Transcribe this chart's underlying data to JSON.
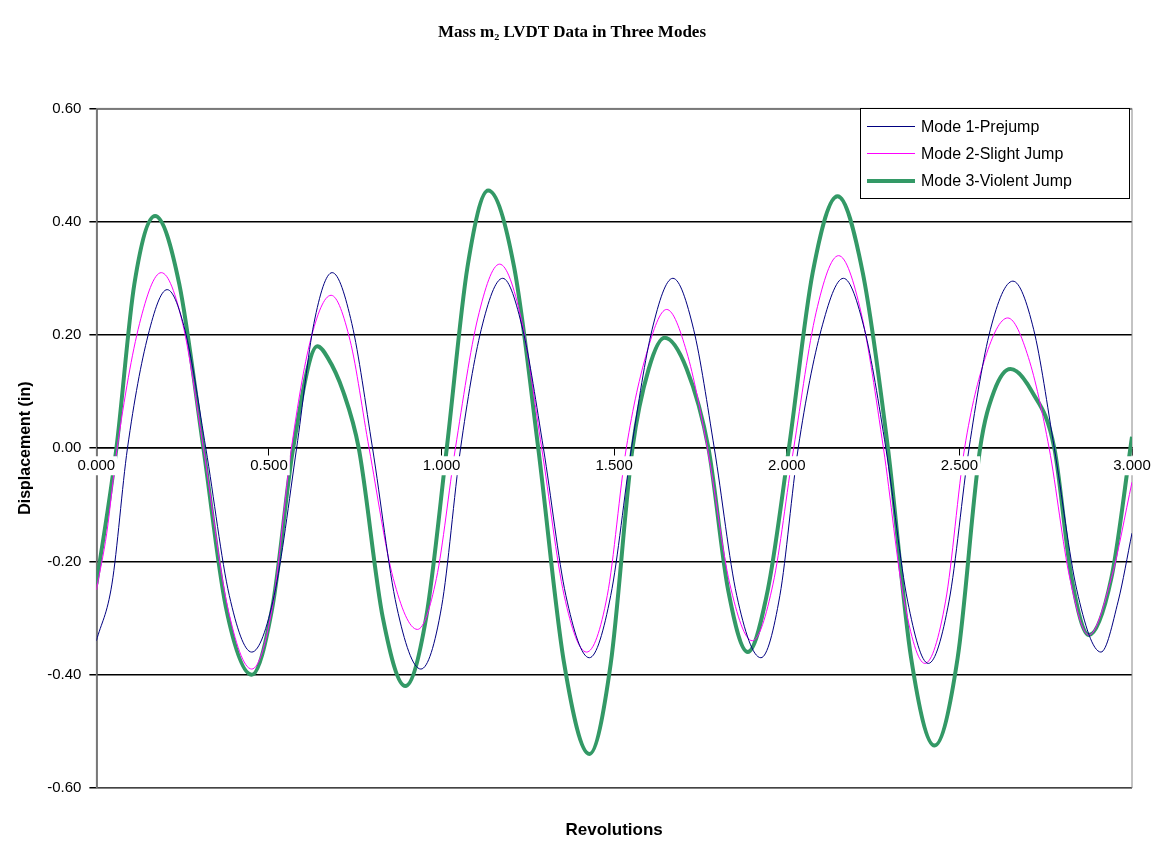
{
  "chart_data": {
    "type": "line",
    "title": "Mass m₂ LVDT Data in Three Modes",
    "xlabel": "Revolutions",
    "ylabel": "Displacement (in)",
    "xlim": [
      0,
      3
    ],
    "ylim": [
      -0.6,
      0.6
    ],
    "xticks": [
      {
        "value": 0,
        "label": "0.000"
      },
      {
        "value": 0.5,
        "label": "0.500"
      },
      {
        "value": 1,
        "label": "1.000"
      },
      {
        "value": 1.5,
        "label": "1.500"
      },
      {
        "value": 2,
        "label": "2.000"
      },
      {
        "value": 2.5,
        "label": "2.500"
      },
      {
        "value": 3,
        "label": "3.000"
      }
    ],
    "yticks": [
      {
        "value": -0.6,
        "label": "-0.60"
      },
      {
        "value": -0.4,
        "label": "-0.40"
      },
      {
        "value": -0.2,
        "label": "-0.20"
      },
      {
        "value": 0,
        "label": "0.00"
      },
      {
        "value": 0.2,
        "label": "0.20"
      },
      {
        "value": 0.4,
        "label": "0.40"
      },
      {
        "value": 0.6,
        "label": "0.60"
      }
    ],
    "grid": "y",
    "legend": "top right",
    "marker": "none",
    "line_style": "solid",
    "series": [
      {
        "name": "Mode 1-Prejump",
        "color": "#000080",
        "x": [
          0,
          0.045,
          0.09,
          0.15,
          0.205,
          0.26,
          0.317,
          0.385,
          0.45,
          0.515,
          0.58,
          0.63,
          0.683,
          0.74,
          0.8,
          0.87,
          0.94,
          1.0,
          1.055,
          1.115,
          1.177,
          1.235,
          1.295,
          1.36,
          1.428,
          1.49,
          1.55,
          1.61,
          1.67,
          1.73,
          1.79,
          1.855,
          1.925,
          1.98,
          2.033,
          2.1,
          2.164,
          2.225,
          2.287,
          2.35,
          2.41,
          2.47,
          2.528,
          2.59,
          2.655,
          2.715,
          2.775,
          2.84,
          2.91,
          2.96,
          3.0
        ],
        "values": [
          -0.34,
          -0.24,
          0,
          0.2,
          0.28,
          0.2,
          0,
          -0.26,
          -0.36,
          -0.26,
          0,
          0.22,
          0.31,
          0.22,
          0,
          -0.28,
          -0.39,
          -0.28,
          0,
          0.21,
          0.3,
          0.21,
          0,
          -0.26,
          -0.37,
          -0.26,
          0,
          0.21,
          0.3,
          0.21,
          0,
          -0.26,
          -0.37,
          -0.26,
          0,
          0.21,
          0.3,
          0.21,
          0,
          -0.27,
          -0.38,
          -0.27,
          0,
          0.21,
          0.295,
          0.21,
          0,
          -0.25,
          -0.36,
          -0.27,
          -0.15
        ]
      },
      {
        "name": "Mode 2-Slight Jump",
        "color": "#ff00ff",
        "x": [
          0,
          0.03,
          0.06,
          0.125,
          0.188,
          0.25,
          0.31,
          0.38,
          0.45,
          0.51,
          0.565,
          0.62,
          0.68,
          0.735,
          0.79,
          0.86,
          0.93,
          0.985,
          1.04,
          1.105,
          1.168,
          1.23,
          1.29,
          1.355,
          1.42,
          1.48,
          1.535,
          1.595,
          1.652,
          1.71,
          1.77,
          1.835,
          1.9,
          1.96,
          2.02,
          2.085,
          2.15,
          2.215,
          2.28,
          2.34,
          2.4,
          2.46,
          2.515,
          2.575,
          2.64,
          2.7,
          2.76,
          2.82,
          2.875,
          2.94,
          3.0
        ],
        "values": [
          -0.25,
          -0.15,
          0,
          0.22,
          0.31,
          0.22,
          0,
          -0.28,
          -0.39,
          -0.28,
          0,
          0.19,
          0.27,
          0.19,
          0,
          -0.23,
          -0.32,
          -0.23,
          0,
          0.23,
          0.325,
          0.23,
          0,
          -0.26,
          -0.36,
          -0.26,
          0,
          0.17,
          0.245,
          0.17,
          0,
          -0.24,
          -0.34,
          -0.24,
          0,
          0.24,
          0.34,
          0.24,
          0,
          -0.27,
          -0.38,
          -0.27,
          0,
          0.16,
          0.23,
          0.16,
          0,
          -0.23,
          -0.33,
          -0.23,
          -0.06
        ]
      },
      {
        "name": "Mode 3-Violent Jump",
        "color": "#339966",
        "x": [
          0,
          0.058,
          0.11,
          0.17,
          0.24,
          0.31,
          0.375,
          0.45,
          0.51,
          0.57,
          0.64,
          0.67,
          0.715,
          0.76,
          0.83,
          0.895,
          0.955,
          1.015,
          1.075,
          1.135,
          1.21,
          1.28,
          1.355,
          1.428,
          1.49,
          1.553,
          1.6,
          1.646,
          1.71,
          1.773,
          1.83,
          1.887,
          1.945,
          2.006,
          2.075,
          2.147,
          2.22,
          2.293,
          2.36,
          2.428,
          2.495,
          2.56,
          2.6,
          2.648,
          2.71,
          2.775,
          2.825,
          2.875,
          2.94,
          3.0
        ],
        "values": [
          -0.24,
          0,
          0.29,
          0.41,
          0.29,
          0,
          -0.28,
          -0.4,
          -0.28,
          0,
          0.18,
          0.16,
          0.1,
          0,
          -0.3,
          -0.42,
          -0.3,
          0,
          0.32,
          0.455,
          0.32,
          0,
          -0.38,
          -0.54,
          -0.38,
          0,
          0.14,
          0.195,
          0.14,
          0,
          -0.25,
          -0.36,
          -0.25,
          0,
          0.31,
          0.445,
          0.31,
          0,
          -0.37,
          -0.525,
          -0.37,
          0,
          0.1,
          0.14,
          0.1,
          0,
          -0.23,
          -0.33,
          -0.23,
          0.02
        ]
      }
    ]
  }
}
